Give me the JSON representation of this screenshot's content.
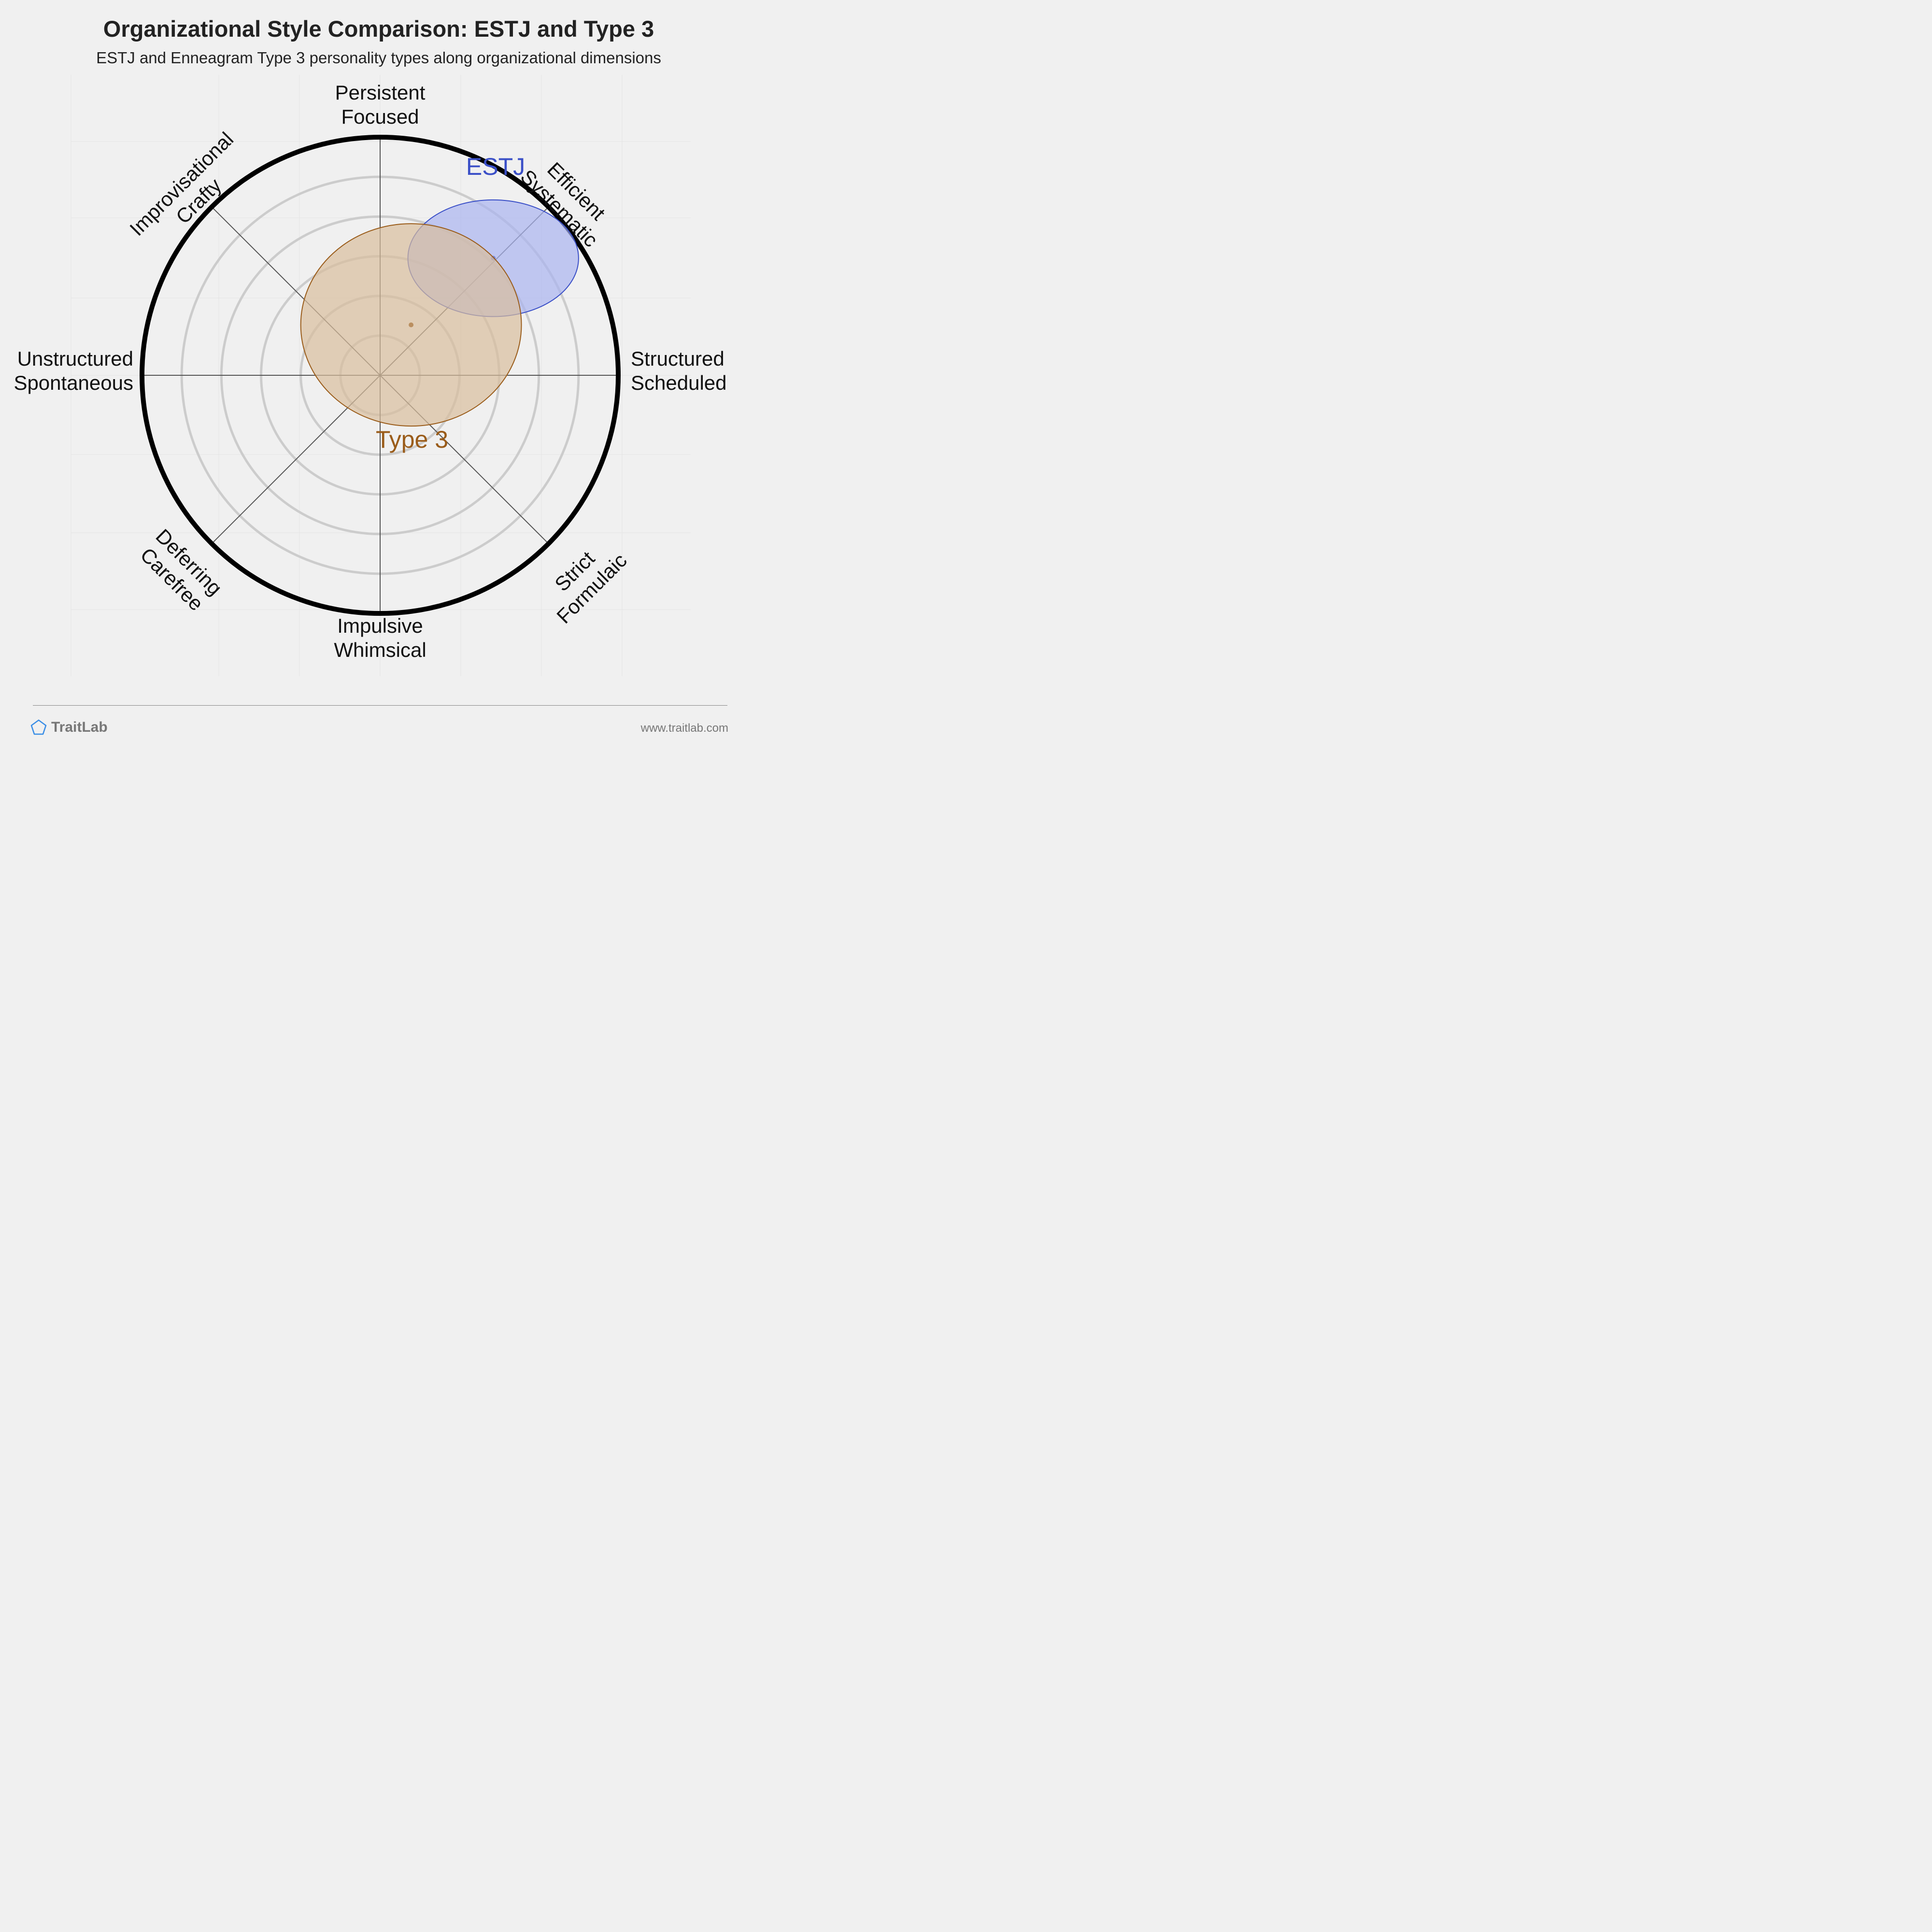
{
  "header": {
    "title": "Organizational Style Comparison: ESTJ and Type 3",
    "subtitle": "ESTJ and Enneagram Type 3 personality types along organizational dimensions"
  },
  "footer": {
    "brand": "TraitLab",
    "url": "www.traitlab.com"
  },
  "colors": {
    "background": "#f0f0f0",
    "estj": "#3a4fc7",
    "type3": "#9a5c1a",
    "outer_ring": "#000000",
    "grid": "#cccccc",
    "axis": "#555555"
  },
  "chart_data": {
    "type": "scatter",
    "title": "Organizational Style Comparison: ESTJ and Type 3",
    "axes": [
      {
        "name": "Structured / Scheduled",
        "lines": [
          "Structured",
          "Scheduled"
        ]
      },
      {
        "name": "Efficient / Systematic",
        "lines": [
          "Efficient",
          "Systematic"
        ]
      },
      {
        "name": "Persistent / Focused",
        "lines": [
          "Persistent",
          "Focused"
        ]
      },
      {
        "name": "Improvisational / Crafty",
        "lines": [
          "Improvisational",
          "Crafty"
        ]
      },
      {
        "name": "Unstructured / Spontaneous",
        "lines": [
          "Unstructured",
          "Spontaneous"
        ]
      },
      {
        "name": "Deferring / Carefree",
        "lines": [
          "Deferring",
          "Carefree"
        ]
      },
      {
        "name": "Impulsive / Whimsical",
        "lines": [
          "Impulsive",
          "Whimsical"
        ]
      },
      {
        "name": "Strict / Formulaic",
        "lines": [
          "Strict",
          "Formulaic"
        ]
      }
    ],
    "rings": 6,
    "x_range": [
      -6,
      6
    ],
    "y_range": [
      -6,
      6
    ],
    "series": [
      {
        "name": "ESTJ",
        "x": 2.85,
        "y": 2.95,
        "spread_x": 2.15,
        "spread_y": 1.47,
        "color": "#3a4fc7",
        "fill": "#aab3ef"
      },
      {
        "name": "Type 3",
        "x": 0.78,
        "y": 1.27,
        "spread_x": 2.78,
        "spread_y": 2.55,
        "color": "#9a5c1a",
        "fill": "#d9bd9c"
      }
    ]
  }
}
